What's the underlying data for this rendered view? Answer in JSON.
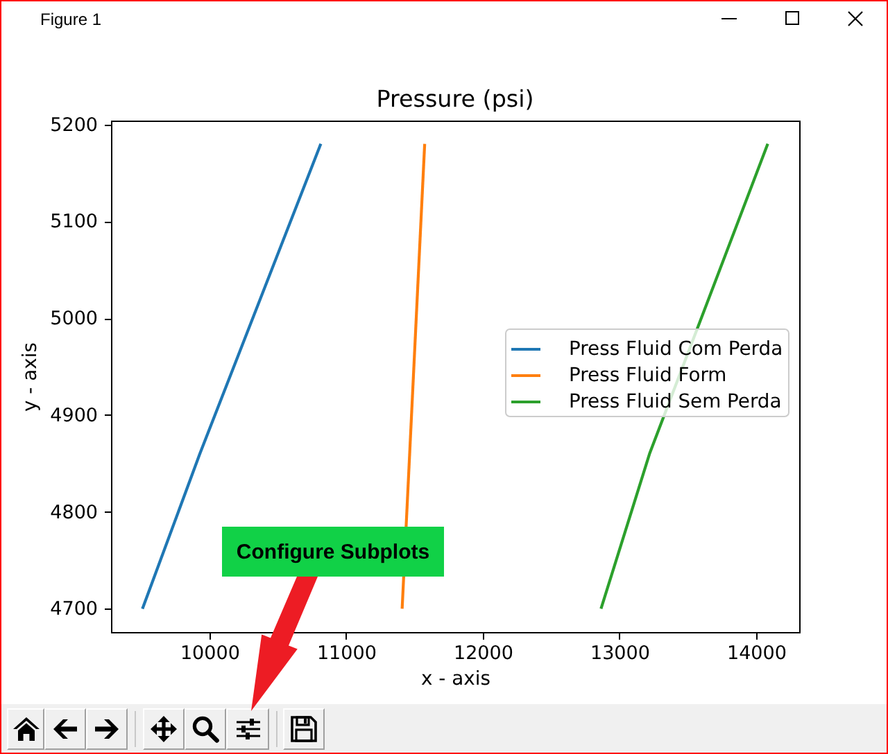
{
  "chart_data": {
    "type": "line",
    "title": "Pressure (psi)",
    "xlabel": "x - axis",
    "ylabel": "y - axis",
    "xlim": [
      9280,
      14315
    ],
    "ylim": [
      4676,
      5204
    ],
    "xticks": [
      10000,
      11000,
      12000,
      13000,
      14000
    ],
    "yticks": [
      4700,
      4800,
      4900,
      5000,
      5100,
      5200
    ],
    "grid": false,
    "legend": "right",
    "series": [
      {
        "name": "Press Fluid Com Perda",
        "color": "#1f77b4",
        "x": [
          9510,
          9930,
          10815
        ],
        "values": [
          4700,
          4860,
          5180
        ]
      },
      {
        "name": "Press Fluid Form",
        "color": "#ff7f0e",
        "x": [
          11410,
          11465,
          11575
        ],
        "values": [
          4700,
          4860,
          5180
        ]
      },
      {
        "name": "Press Fluid Sem Perda",
        "color": "#2ca02c",
        "x": [
          12865,
          13220,
          14085
        ],
        "values": [
          4700,
          4860,
          5180
        ]
      }
    ],
    "annotations": [
      "Figure 1",
      "Configure Subplots"
    ]
  }
}
